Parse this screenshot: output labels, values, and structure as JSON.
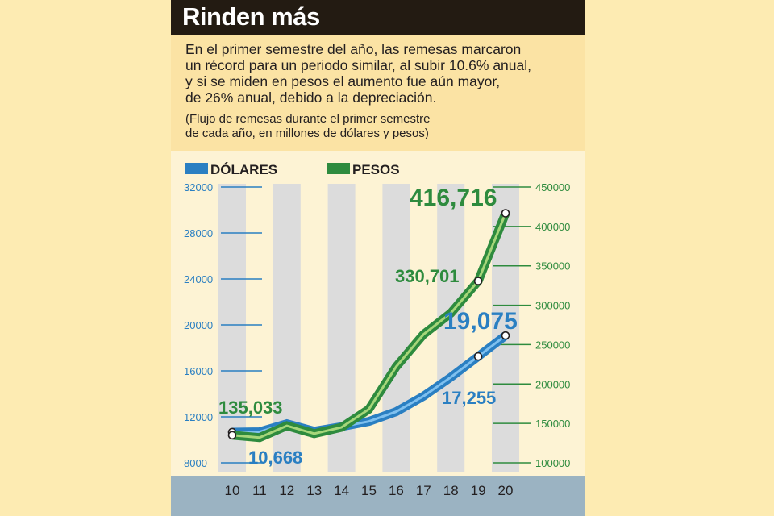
{
  "header": {
    "title": "Rinden más",
    "subtitle_lines": [
      "En el primer semestre del año, las remesas marcaron",
      "un récord para un periodo similar, al subir 10.6% anual,",
      "y si se miden en pesos el aumento fue aún mayor,",
      "de 26% anual, debido a la depreciación."
    ],
    "note_lines": [
      "(Flujo de remesas durante el primer semestre",
      "de cada año, en millones de dólares y pesos)"
    ]
  },
  "colors": {
    "dolares": "#2a7fc2",
    "pesos": "#2e8b3e",
    "band": "#dcdcdc",
    "footer": "#9bb3c2"
  },
  "chart_data": {
    "type": "line",
    "categories": [
      "10",
      "11",
      "12",
      "13",
      "14",
      "15",
      "16",
      "17",
      "18",
      "19",
      "20"
    ],
    "legend": [
      "DÓLARES",
      "PESOS"
    ],
    "series": [
      {
        "name": "DÓLARES",
        "axis": "left",
        "values": [
          10668,
          10700,
          11400,
          10750,
          11150,
          11600,
          12450,
          13800,
          15450,
          17255,
          19075
        ]
      },
      {
        "name": "PESOS",
        "axis": "right",
        "values": [
          135033,
          132000,
          147000,
          137000,
          145000,
          168000,
          222000,
          263000,
          290000,
          330701,
          416716
        ]
      }
    ],
    "left_axis": {
      "ticks": [
        "32000",
        "28000",
        "24000",
        "20000",
        "16000",
        "12000",
        "8000"
      ],
      "range": [
        8000,
        32000
      ]
    },
    "right_axis": {
      "ticks": [
        "450000",
        "400000",
        "350000",
        "300000",
        "250000",
        "200000",
        "150000",
        "100000"
      ],
      "range": [
        100000,
        450000
      ]
    },
    "labels": {
      "pesos_first": "135,033",
      "pesos_19": "330,701",
      "pesos_last": "416,716",
      "dolares_first": "10,668",
      "dolares_19": "17,255",
      "dolares_last": "19,075"
    }
  }
}
